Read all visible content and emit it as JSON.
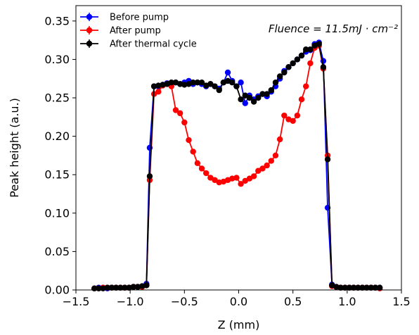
{
  "chart_data": {
    "type": "line",
    "title": "",
    "xlabel": "Z (mm)",
    "ylabel": "Peak height (a.u.)",
    "xlim": [
      -1.5,
      1.5
    ],
    "ylim": [
      0.0,
      0.37
    ],
    "xticks": [
      -1.5,
      -1.0,
      -0.5,
      0.0,
      0.5,
      1.0,
      1.5
    ],
    "xtick_labels": [
      "−1.5",
      "−1.0",
      "−0.5",
      "0.0",
      "0.5",
      "1.0",
      "1.5"
    ],
    "yticks": [
      0.0,
      0.05,
      0.1,
      0.15,
      0.2,
      0.25,
      0.3,
      0.35
    ],
    "ytick_labels": [
      "0.00",
      "0.05",
      "0.10",
      "0.15",
      "0.20",
      "0.25",
      "0.30",
      "0.35"
    ],
    "grid": false,
    "legend_position": "top-left",
    "annotation": "Fluence = 11.5mJ · cm⁻²",
    "series": [
      {
        "name": "Before pump",
        "color": "#0000ff",
        "points": [
          [
            -1.33,
            0.002
          ],
          [
            -1.29,
            0.003
          ],
          [
            -1.25,
            0.003
          ],
          [
            -1.21,
            0.002
          ],
          [
            -1.17,
            0.003
          ],
          [
            -1.13,
            0.003
          ],
          [
            -1.09,
            0.003
          ],
          [
            -1.05,
            0.003
          ],
          [
            -1.01,
            0.003
          ],
          [
            -0.97,
            0.004
          ],
          [
            -0.93,
            0.004
          ],
          [
            -0.89,
            0.004
          ],
          [
            -0.85,
            0.008
          ],
          [
            -0.82,
            0.185
          ],
          [
            -0.78,
            0.265
          ],
          [
            -0.74,
            0.265
          ],
          [
            -0.7,
            0.267
          ],
          [
            -0.66,
            0.269
          ],
          [
            -0.62,
            0.268
          ],
          [
            -0.58,
            0.27
          ],
          [
            -0.54,
            0.268
          ],
          [
            -0.5,
            0.27
          ],
          [
            -0.46,
            0.272
          ],
          [
            -0.42,
            0.268
          ],
          [
            -0.38,
            0.27
          ],
          [
            -0.34,
            0.268
          ],
          [
            -0.3,
            0.265
          ],
          [
            -0.26,
            0.268
          ],
          [
            -0.22,
            0.265
          ],
          [
            -0.18,
            0.262
          ],
          [
            -0.14,
            0.27
          ],
          [
            -0.1,
            0.283
          ],
          [
            -0.06,
            0.272
          ],
          [
            -0.02,
            0.265
          ],
          [
            0.02,
            0.27
          ],
          [
            0.06,
            0.243
          ],
          [
            0.1,
            0.253
          ],
          [
            0.14,
            0.248
          ],
          [
            0.18,
            0.252
          ],
          [
            0.22,
            0.255
          ],
          [
            0.26,
            0.252
          ],
          [
            0.3,
            0.258
          ],
          [
            0.34,
            0.265
          ],
          [
            0.38,
            0.275
          ],
          [
            0.42,
            0.285
          ],
          [
            0.46,
            0.29
          ],
          [
            0.5,
            0.295
          ],
          [
            0.54,
            0.3
          ],
          [
            0.58,
            0.305
          ],
          [
            0.62,
            0.31
          ],
          [
            0.66,
            0.312
          ],
          [
            0.7,
            0.32
          ],
          [
            0.74,
            0.322
          ],
          [
            0.78,
            0.298
          ],
          [
            0.82,
            0.107
          ],
          [
            0.86,
            0.007
          ],
          [
            0.9,
            0.004
          ],
          [
            0.94,
            0.003
          ],
          [
            0.98,
            0.003
          ],
          [
            1.02,
            0.003
          ],
          [
            1.06,
            0.003
          ],
          [
            1.1,
            0.003
          ],
          [
            1.14,
            0.003
          ],
          [
            1.18,
            0.003
          ],
          [
            1.22,
            0.003
          ],
          [
            1.26,
            0.003
          ],
          [
            1.3,
            0.003
          ]
        ]
      },
      {
        "name": "After pump",
        "color": "#ff0000",
        "points": [
          [
            -1.33,
            0.002
          ],
          [
            -1.29,
            0.002
          ],
          [
            -1.25,
            0.003
          ],
          [
            -1.21,
            0.003
          ],
          [
            -1.17,
            0.003
          ],
          [
            -1.13,
            0.003
          ],
          [
            -1.09,
            0.003
          ],
          [
            -1.05,
            0.003
          ],
          [
            -1.01,
            0.003
          ],
          [
            -0.97,
            0.004
          ],
          [
            -0.93,
            0.004
          ],
          [
            -0.89,
            0.004
          ],
          [
            -0.85,
            0.006
          ],
          [
            -0.82,
            0.143
          ],
          [
            -0.78,
            0.255
          ],
          [
            -0.74,
            0.258
          ],
          [
            -0.7,
            0.266
          ],
          [
            -0.66,
            0.268
          ],
          [
            -0.62,
            0.265
          ],
          [
            -0.58,
            0.234
          ],
          [
            -0.54,
            0.23
          ],
          [
            -0.5,
            0.218
          ],
          [
            -0.46,
            0.195
          ],
          [
            -0.42,
            0.18
          ],
          [
            -0.38,
            0.165
          ],
          [
            -0.34,
            0.158
          ],
          [
            -0.3,
            0.152
          ],
          [
            -0.26,
            0.146
          ],
          [
            -0.22,
            0.143
          ],
          [
            -0.18,
            0.14
          ],
          [
            -0.14,
            0.141
          ],
          [
            -0.1,
            0.143
          ],
          [
            -0.06,
            0.145
          ],
          [
            -0.02,
            0.146
          ],
          [
            0.02,
            0.138
          ],
          [
            0.06,
            0.142
          ],
          [
            0.1,
            0.145
          ],
          [
            0.14,
            0.148
          ],
          [
            0.18,
            0.155
          ],
          [
            0.22,
            0.158
          ],
          [
            0.26,
            0.162
          ],
          [
            0.3,
            0.168
          ],
          [
            0.34,
            0.175
          ],
          [
            0.38,
            0.196
          ],
          [
            0.42,
            0.227
          ],
          [
            0.46,
            0.222
          ],
          [
            0.5,
            0.22
          ],
          [
            0.54,
            0.227
          ],
          [
            0.58,
            0.248
          ],
          [
            0.62,
            0.265
          ],
          [
            0.66,
            0.295
          ],
          [
            0.7,
            0.315
          ],
          [
            0.74,
            0.318
          ],
          [
            0.78,
            0.288
          ],
          [
            0.82,
            0.175
          ],
          [
            0.86,
            0.005
          ],
          [
            0.9,
            0.004
          ],
          [
            0.94,
            0.003
          ],
          [
            0.98,
            0.003
          ],
          [
            1.02,
            0.003
          ],
          [
            1.06,
            0.003
          ],
          [
            1.1,
            0.003
          ],
          [
            1.14,
            0.003
          ],
          [
            1.18,
            0.003
          ],
          [
            1.22,
            0.003
          ],
          [
            1.26,
            0.003
          ],
          [
            1.3,
            0.002
          ]
        ]
      },
      {
        "name": "After thermal cycle",
        "color": "#000000",
        "points": [
          [
            -1.33,
            0.002
          ],
          [
            -1.29,
            0.002
          ],
          [
            -1.25,
            0.002
          ],
          [
            -1.21,
            0.003
          ],
          [
            -1.17,
            0.003
          ],
          [
            -1.13,
            0.003
          ],
          [
            -1.09,
            0.003
          ],
          [
            -1.05,
            0.003
          ],
          [
            -1.01,
            0.003
          ],
          [
            -0.97,
            0.004
          ],
          [
            -0.93,
            0.004
          ],
          [
            -0.89,
            0.005
          ],
          [
            -0.85,
            0.006
          ],
          [
            -0.82,
            0.148
          ],
          [
            -0.78,
            0.265
          ],
          [
            -0.74,
            0.266
          ],
          [
            -0.7,
            0.267
          ],
          [
            -0.66,
            0.268
          ],
          [
            -0.62,
            0.27
          ],
          [
            -0.58,
            0.27
          ],
          [
            -0.54,
            0.268
          ],
          [
            -0.5,
            0.267
          ],
          [
            -0.46,
            0.268
          ],
          [
            -0.42,
            0.27
          ],
          [
            -0.38,
            0.27
          ],
          [
            -0.34,
            0.27
          ],
          [
            -0.3,
            0.266
          ],
          [
            -0.26,
            0.268
          ],
          [
            -0.22,
            0.265
          ],
          [
            -0.18,
            0.26
          ],
          [
            -0.14,
            0.27
          ],
          [
            -0.1,
            0.272
          ],
          [
            -0.06,
            0.27
          ],
          [
            -0.02,
            0.265
          ],
          [
            0.02,
            0.248
          ],
          [
            0.06,
            0.253
          ],
          [
            0.1,
            0.25
          ],
          [
            0.14,
            0.245
          ],
          [
            0.18,
            0.25
          ],
          [
            0.22,
            0.255
          ],
          [
            0.26,
            0.255
          ],
          [
            0.3,
            0.26
          ],
          [
            0.34,
            0.27
          ],
          [
            0.38,
            0.278
          ],
          [
            0.42,
            0.283
          ],
          [
            0.46,
            0.29
          ],
          [
            0.5,
            0.295
          ],
          [
            0.54,
            0.3
          ],
          [
            0.58,
            0.305
          ],
          [
            0.62,
            0.313
          ],
          [
            0.66,
            0.313
          ],
          [
            0.7,
            0.318
          ],
          [
            0.74,
            0.32
          ],
          [
            0.78,
            0.29
          ],
          [
            0.82,
            0.17
          ],
          [
            0.86,
            0.006
          ],
          [
            0.9,
            0.004
          ],
          [
            0.94,
            0.003
          ],
          [
            0.98,
            0.003
          ],
          [
            1.02,
            0.003
          ],
          [
            1.06,
            0.003
          ],
          [
            1.1,
            0.003
          ],
          [
            1.14,
            0.003
          ],
          [
            1.18,
            0.003
          ],
          [
            1.22,
            0.003
          ],
          [
            1.26,
            0.003
          ],
          [
            1.3,
            0.003
          ]
        ]
      }
    ]
  }
}
